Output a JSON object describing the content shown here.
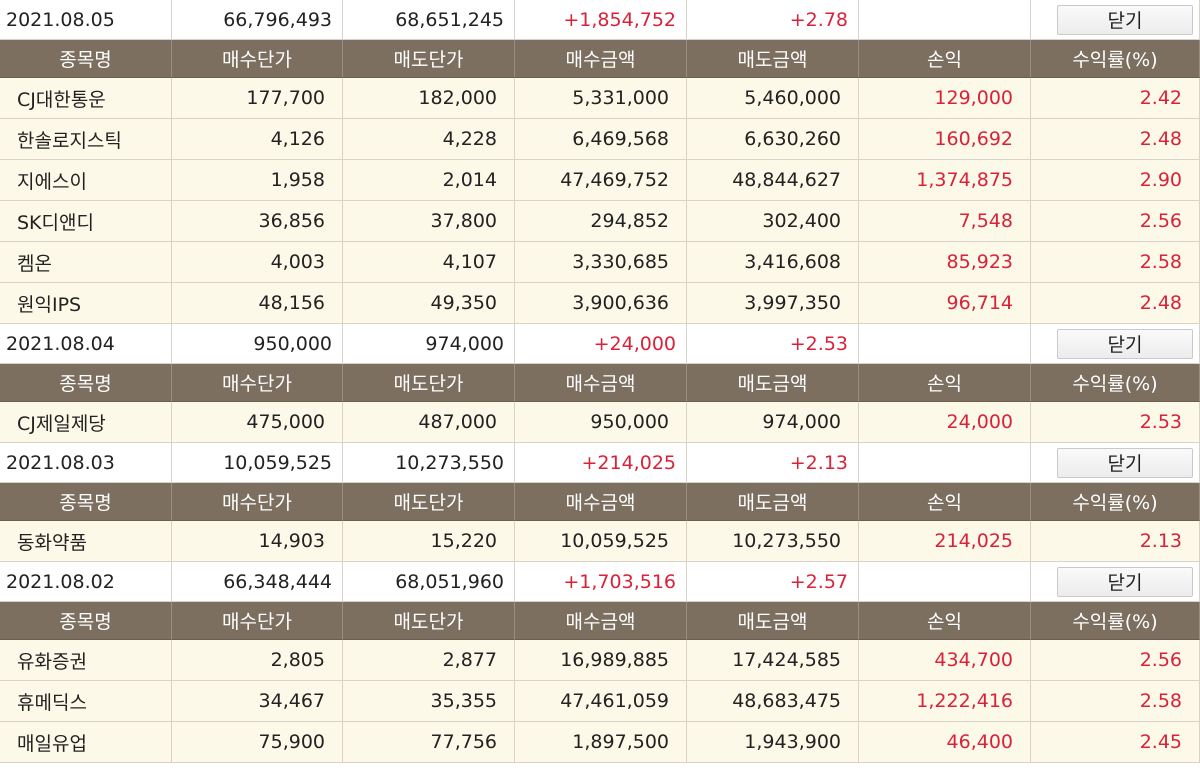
{
  "headers": [
    "종목명",
    "매수단가",
    "매도단가",
    "매수금액",
    "매도금액",
    "손익",
    "수익률(%)"
  ],
  "close_label": "닫기",
  "groups": [
    {
      "date": "2021.08.05",
      "buy_total": "66,796,493",
      "sell_total": "68,651,245",
      "profit": "+1,854,752",
      "rate": "+2.78",
      "rows": [
        {
          "name": "CJ대한통운",
          "buy_price": "177,700",
          "sell_price": "182,000",
          "buy_amount": "5,331,000",
          "sell_amount": "5,460,000",
          "profit": "129,000",
          "rate": "2.42"
        },
        {
          "name": "한솔로지스틱",
          "buy_price": "4,126",
          "sell_price": "4,228",
          "buy_amount": "6,469,568",
          "sell_amount": "6,630,260",
          "profit": "160,692",
          "rate": "2.48"
        },
        {
          "name": "지에스이",
          "buy_price": "1,958",
          "sell_price": "2,014",
          "buy_amount": "47,469,752",
          "sell_amount": "48,844,627",
          "profit": "1,374,875",
          "rate": "2.90"
        },
        {
          "name": "SK디앤디",
          "buy_price": "36,856",
          "sell_price": "37,800",
          "buy_amount": "294,852",
          "sell_amount": "302,400",
          "profit": "7,548",
          "rate": "2.56"
        },
        {
          "name": "켐온",
          "buy_price": "4,003",
          "sell_price": "4,107",
          "buy_amount": "3,330,685",
          "sell_amount": "3,416,608",
          "profit": "85,923",
          "rate": "2.58"
        },
        {
          "name": "원익IPS",
          "buy_price": "48,156",
          "sell_price": "49,350",
          "buy_amount": "3,900,636",
          "sell_amount": "3,997,350",
          "profit": "96,714",
          "rate": "2.48"
        }
      ]
    },
    {
      "date": "2021.08.04",
      "buy_total": "950,000",
      "sell_total": "974,000",
      "profit": "+24,000",
      "rate": "+2.53",
      "rows": [
        {
          "name": "CJ제일제당",
          "buy_price": "475,000",
          "sell_price": "487,000",
          "buy_amount": "950,000",
          "sell_amount": "974,000",
          "profit": "24,000",
          "rate": "2.53"
        }
      ]
    },
    {
      "date": "2021.08.03",
      "buy_total": "10,059,525",
      "sell_total": "10,273,550",
      "profit": "+214,025",
      "rate": "+2.13",
      "rows": [
        {
          "name": "동화약품",
          "buy_price": "14,903",
          "sell_price": "15,220",
          "buy_amount": "10,059,525",
          "sell_amount": "10,273,550",
          "profit": "214,025",
          "rate": "2.13"
        }
      ]
    },
    {
      "date": "2021.08.02",
      "buy_total": "66,348,444",
      "sell_total": "68,051,960",
      "profit": "+1,703,516",
      "rate": "+2.57",
      "rows": [
        {
          "name": "유화증권",
          "buy_price": "2,805",
          "sell_price": "2,877",
          "buy_amount": "16,989,885",
          "sell_amount": "17,424,585",
          "profit": "434,700",
          "rate": "2.56"
        },
        {
          "name": "휴메딕스",
          "buy_price": "34,467",
          "sell_price": "35,355",
          "buy_amount": "47,461,059",
          "sell_amount": "48,683,475",
          "profit": "1,222,416",
          "rate": "2.58"
        },
        {
          "name": "매일유업",
          "buy_price": "75,900",
          "sell_price": "77,756",
          "buy_amount": "1,897,500",
          "sell_amount": "1,943,900",
          "profit": "46,400",
          "rate": "2.45"
        }
      ]
    }
  ]
}
